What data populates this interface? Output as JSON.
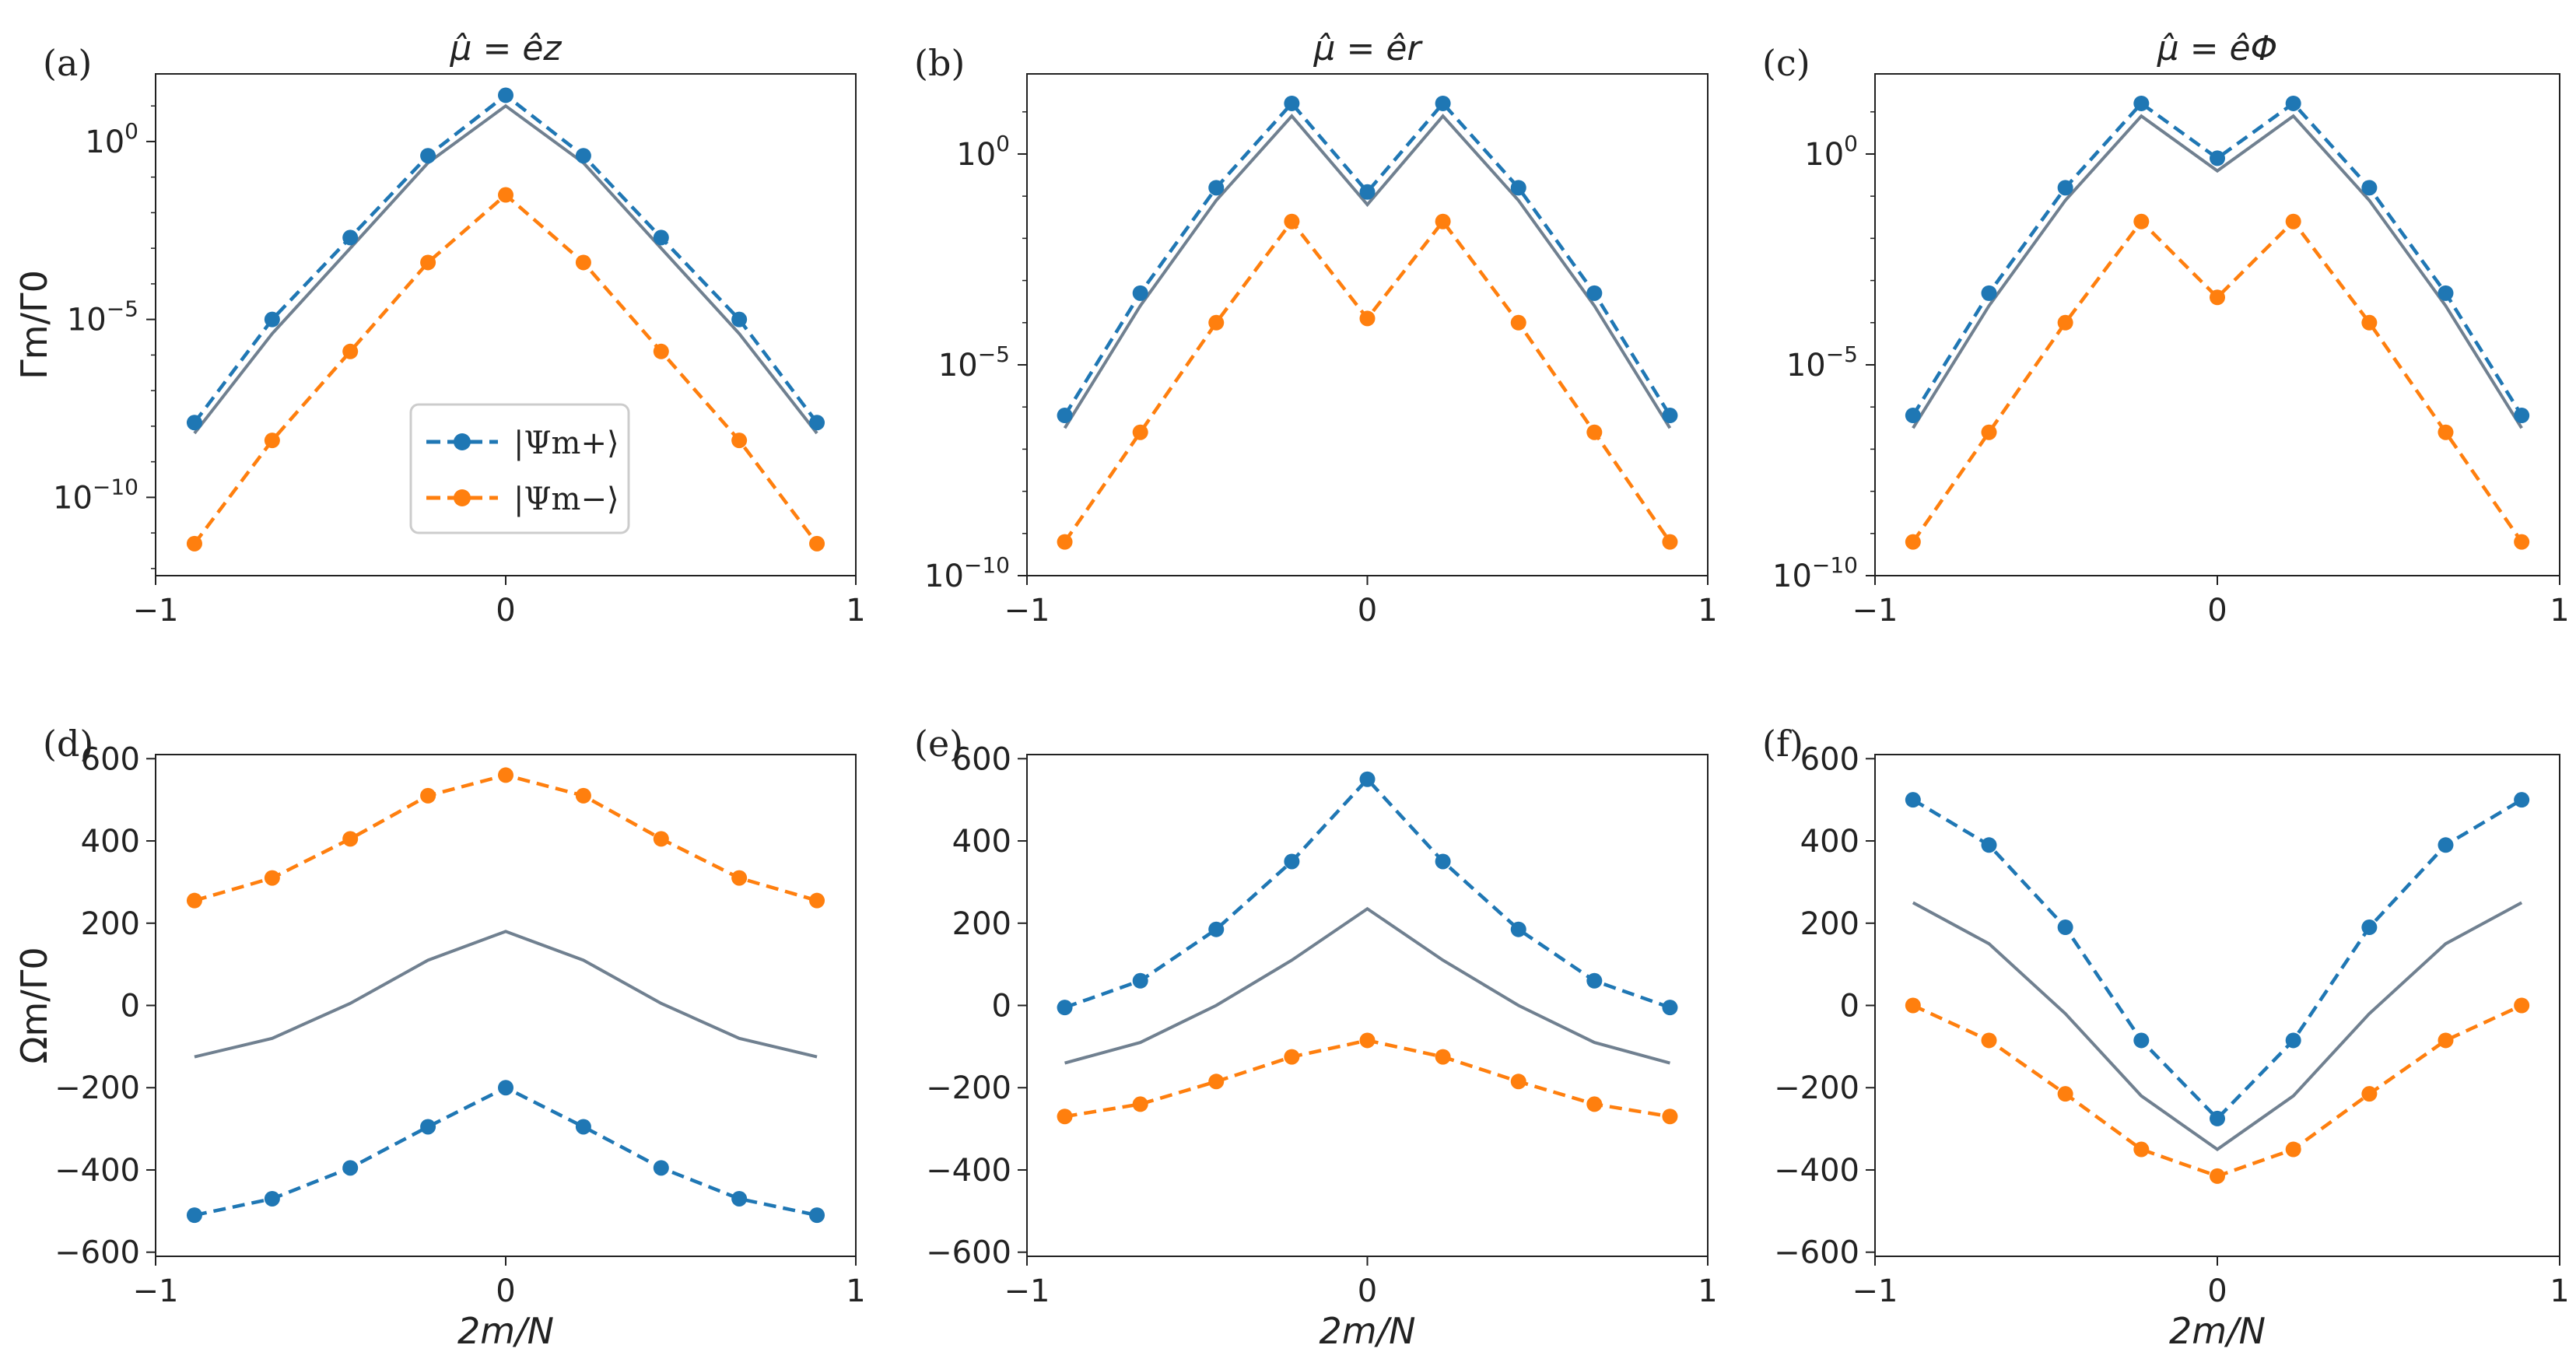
{
  "legend": {
    "plus_label": "|Ψm+⟩",
    "minus_label": "|Ψm−⟩",
    "plus_color": "#1f77b4",
    "minus_color": "#ff7f0e",
    "solid_color": "#708090"
  },
  "chart_data": [
    {
      "panel": "(a)",
      "type": "line",
      "title": "μ̂ = êz",
      "yscale": "log",
      "ylabel": "Γm/Γ0",
      "xlabel": "",
      "xlim": [
        -1,
        1
      ],
      "ylim_log10": [
        -12.2,
        1.9
      ],
      "xticks": [
        "−1",
        "0",
        "1"
      ],
      "yticks": [
        {
          "exp": 0,
          "label": "10^0"
        },
        {
          "exp": -5,
          "label": "10^−5"
        },
        {
          "exp": -10,
          "label": "10^−10"
        }
      ],
      "x": [
        -0.889,
        -0.667,
        -0.444,
        -0.222,
        0.0,
        0.222,
        0.444,
        0.667,
        0.889
      ],
      "series": [
        {
          "name": "|Ψm+⟩",
          "style": "dashed-marker",
          "values_log10": [
            -7.9,
            -5.0,
            -2.7,
            -0.4,
            1.3,
            -0.4,
            -2.7,
            -5.0,
            -7.9
          ]
        },
        {
          "name": "|Ψm−⟩",
          "style": "dashed-marker",
          "values_log10": [
            -11.3,
            -8.4,
            -5.9,
            -3.4,
            -1.5,
            -3.4,
            -5.9,
            -8.4,
            -11.3
          ]
        },
        {
          "name": "solid",
          "style": "solid",
          "values_log10": [
            -8.2,
            -5.4,
            -3.0,
            -0.6,
            1.0,
            -0.6,
            -3.0,
            -5.4,
            -8.2
          ]
        }
      ],
      "legend_position": "lower-center"
    },
    {
      "panel": "(b)",
      "type": "line",
      "title": "μ̂ = êr",
      "yscale": "log",
      "ylabel": "",
      "xlabel": "",
      "xlim": [
        -1,
        1
      ],
      "ylim_log10": [
        -10.0,
        1.9
      ],
      "xticks": [
        "−1",
        "0",
        "1"
      ],
      "yticks": [
        {
          "exp": 0,
          "label": "10^0"
        },
        {
          "exp": -5,
          "label": "10^−5"
        },
        {
          "exp": -10,
          "label": "10^−10"
        }
      ],
      "x": [
        -0.889,
        -0.667,
        -0.444,
        -0.222,
        0.0,
        0.222,
        0.444,
        0.667,
        0.889
      ],
      "series": [
        {
          "name": "|Ψm+⟩",
          "style": "dashed-marker",
          "values_log10": [
            -6.2,
            -3.3,
            -0.8,
            1.2,
            -0.9,
            1.2,
            -0.8,
            -3.3,
            -6.2
          ]
        },
        {
          "name": "|Ψm−⟩",
          "style": "dashed-marker",
          "values_log10": [
            -9.2,
            -6.6,
            -4.0,
            -1.6,
            -3.9,
            -1.6,
            -4.0,
            -6.6,
            -9.2
          ]
        },
        {
          "name": "solid",
          "style": "solid",
          "values_log10": [
            -6.5,
            -3.6,
            -1.1,
            0.9,
            -1.2,
            0.9,
            -1.1,
            -3.6,
            -6.5
          ]
        }
      ]
    },
    {
      "panel": "(c)",
      "type": "line",
      "title": "μ̂ = êΦ",
      "yscale": "log",
      "ylabel": "",
      "xlabel": "",
      "xlim": [
        -1,
        1
      ],
      "ylim_log10": [
        -10.0,
        1.9
      ],
      "xticks": [
        "−1",
        "0",
        "1"
      ],
      "yticks": [
        {
          "exp": 0,
          "label": "10^0"
        },
        {
          "exp": -5,
          "label": "10^−5"
        },
        {
          "exp": -10,
          "label": "10^−10"
        }
      ],
      "x": [
        -0.889,
        -0.667,
        -0.444,
        -0.222,
        0.0,
        0.222,
        0.444,
        0.667,
        0.889
      ],
      "series": [
        {
          "name": "|Ψm+⟩",
          "style": "dashed-marker",
          "values_log10": [
            -6.2,
            -3.3,
            -0.8,
            1.2,
            -0.1,
            1.2,
            -0.8,
            -3.3,
            -6.2
          ]
        },
        {
          "name": "|Ψm−⟩",
          "style": "dashed-marker",
          "values_log10": [
            -9.2,
            -6.6,
            -4.0,
            -1.6,
            -3.4,
            -1.6,
            -4.0,
            -6.6,
            -9.2
          ]
        },
        {
          "name": "solid",
          "style": "solid",
          "values_log10": [
            -6.5,
            -3.6,
            -1.1,
            0.9,
            -0.4,
            0.9,
            -1.1,
            -3.6,
            -6.5
          ]
        }
      ]
    },
    {
      "panel": "(d)",
      "type": "line",
      "title": "",
      "yscale": "linear",
      "ylabel": "Ωm/Γ0",
      "xlabel": "2m/N",
      "xlim": [
        -1,
        1
      ],
      "ylim": [
        -610,
        610
      ],
      "xticks": [
        "−1",
        "0",
        "1"
      ],
      "yticks": [
        600,
        400,
        200,
        0,
        -200,
        -400,
        -600
      ],
      "ytick_labels": [
        "600",
        "400",
        "200",
        "0",
        "−200",
        "−400",
        "−600"
      ],
      "x": [
        -0.889,
        -0.667,
        -0.444,
        -0.222,
        0.0,
        0.222,
        0.444,
        0.667,
        0.889
      ],
      "series": [
        {
          "name": "|Ψm+⟩",
          "style": "dashed-marker",
          "values": [
            -510,
            -470,
            -395,
            -295,
            -200,
            -295,
            -395,
            -470,
            -510
          ]
        },
        {
          "name": "|Ψm−⟩",
          "style": "dashed-marker",
          "values": [
            255,
            310,
            405,
            510,
            560,
            510,
            405,
            310,
            255
          ]
        },
        {
          "name": "solid",
          "style": "solid",
          "values": [
            -125,
            -80,
            5,
            110,
            180,
            110,
            5,
            -80,
            -125
          ]
        }
      ]
    },
    {
      "panel": "(e)",
      "type": "line",
      "title": "",
      "yscale": "linear",
      "ylabel": "",
      "xlabel": "2m/N",
      "xlim": [
        -1,
        1
      ],
      "ylim": [
        -610,
        610
      ],
      "xticks": [
        "−1",
        "0",
        "1"
      ],
      "yticks": [
        600,
        400,
        200,
        0,
        -200,
        -400,
        -600
      ],
      "ytick_labels": [
        "600",
        "400",
        "200",
        "0",
        "−200",
        "−400",
        "−600"
      ],
      "x": [
        -0.889,
        -0.667,
        -0.444,
        -0.222,
        0.0,
        0.222,
        0.444,
        0.667,
        0.889
      ],
      "series": [
        {
          "name": "|Ψm+⟩",
          "style": "dashed-marker",
          "values": [
            -5,
            60,
            185,
            350,
            550,
            350,
            185,
            60,
            -5
          ]
        },
        {
          "name": "|Ψm−⟩",
          "style": "dashed-marker",
          "values": [
            -270,
            -240,
            -185,
            -125,
            -85,
            -125,
            -185,
            -240,
            -270
          ]
        },
        {
          "name": "solid",
          "style": "solid",
          "values": [
            -140,
            -90,
            0,
            110,
            235,
            110,
            0,
            -90,
            -140
          ]
        }
      ]
    },
    {
      "panel": "(f)",
      "type": "line",
      "title": "",
      "yscale": "linear",
      "ylabel": "",
      "xlabel": "2m/N",
      "xlim": [
        -1,
        1
      ],
      "ylim": [
        -610,
        610
      ],
      "xticks": [
        "−1",
        "0",
        "1"
      ],
      "yticks": [
        600,
        400,
        200,
        0,
        -200,
        -400,
        -600
      ],
      "ytick_labels": [
        "600",
        "400",
        "200",
        "0",
        "−200",
        "−400",
        "−600"
      ],
      "x": [
        -0.889,
        -0.667,
        -0.444,
        -0.222,
        0.0,
        0.222,
        0.444,
        0.667,
        0.889
      ],
      "series": [
        {
          "name": "|Ψm+⟩",
          "style": "dashed-marker",
          "values": [
            500,
            390,
            190,
            -85,
            -275,
            -85,
            190,
            390,
            500
          ]
        },
        {
          "name": "|Ψm−⟩",
          "style": "dashed-marker",
          "values": [
            0,
            -85,
            -215,
            -350,
            -415,
            -350,
            -215,
            -85,
            0
          ]
        },
        {
          "name": "solid",
          "style": "solid",
          "values": [
            250,
            150,
            -20,
            -220,
            -350,
            -220,
            -20,
            150,
            250
          ]
        }
      ]
    }
  ]
}
